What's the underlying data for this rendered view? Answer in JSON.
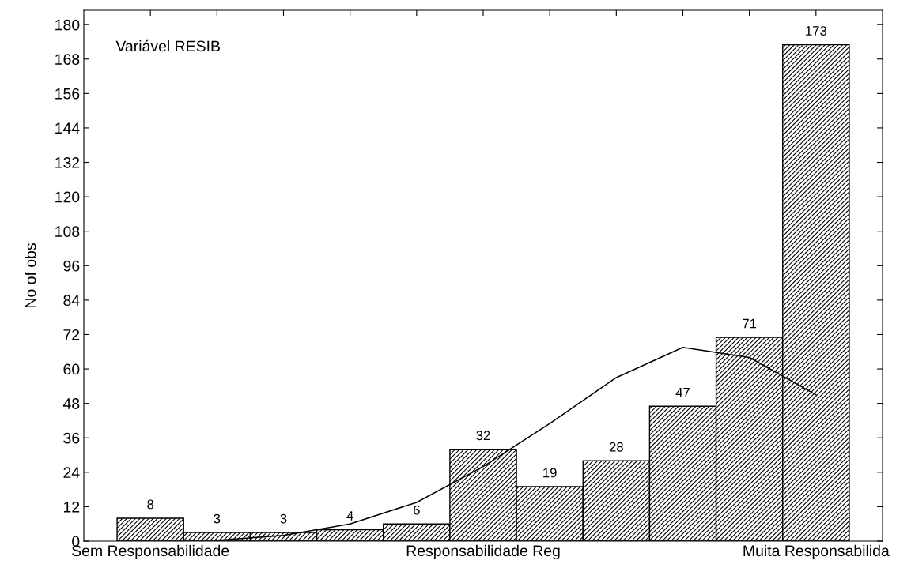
{
  "chart_data": {
    "type": "bar",
    "ylabel": "No of obs",
    "annotations": [
      "Variável RESIB"
    ],
    "categories": [
      "Sem Responsabilidade",
      null,
      null,
      null,
      null,
      "Responsabilidade Reg",
      null,
      null,
      null,
      null,
      "Muita Responsabilida"
    ],
    "series": [
      {
        "color": "#000000",
        "values": [
          8,
          3,
          3,
          4,
          6,
          32,
          19,
          28,
          47,
          71,
          173
        ],
        "data_labels": true
      },
      {
        "type": "line",
        "color": "#000000",
        "values": [
          null,
          0.3,
          2,
          6,
          13.5,
          26,
          41,
          57,
          67.5,
          64,
          51
        ]
      }
    ],
    "ylim": [
      0,
      185
    ],
    "yticks": [
      0,
      12,
      24,
      36,
      48,
      60,
      72,
      84,
      96,
      108,
      120,
      132,
      144,
      156,
      168,
      180
    ]
  }
}
